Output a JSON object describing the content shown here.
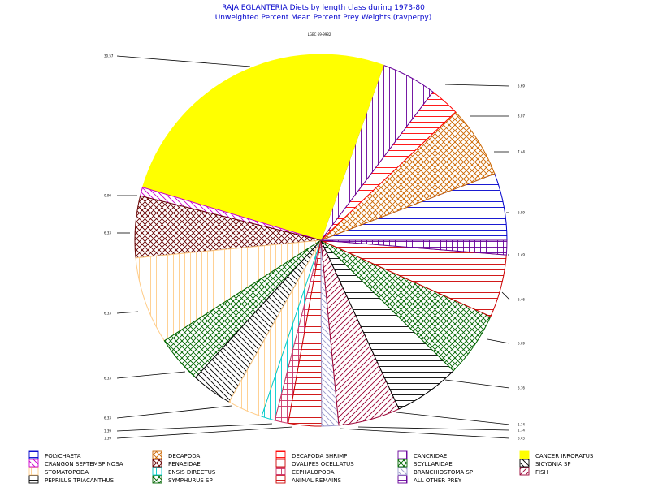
{
  "chart_data": {
    "type": "pie",
    "title": "RAJA EGLANTERIA Diets by length class during 1973-80",
    "subtitle": "Unweighted Percent Mean Percent Prey  Weights (ravperpy)",
    "header_label": "LGBC 69-9982",
    "slices": [
      {
        "name": "POLYCHAETA",
        "value": 6.89,
        "color": "#0000cc",
        "pattern": "hlines",
        "label": "6.89"
      },
      {
        "name": "CRANGON SEPTEMSPINOSA",
        "value": 0,
        "color": "#cc00cc",
        "pattern": "bdiag",
        "label": ""
      },
      {
        "name": "STOMATOPODA",
        "value": 0,
        "color": "#ffcc88",
        "pattern": "vlines",
        "label": ""
      },
      {
        "name": "PEPRILUS TRIACANTHUS",
        "value": 0,
        "color": "#000000",
        "pattern": "hlines",
        "label": ""
      },
      {
        "name": "DECAPODA",
        "value": 7.44,
        "color": "#cc6600",
        "pattern": "cross",
        "label": "7.44"
      },
      {
        "name": "PENAEIDAE",
        "value": 6.33,
        "color": "#660000",
        "pattern": "cross",
        "label": "6.33"
      },
      {
        "name": "ENSIS DIRECTUS",
        "value": 1.39,
        "color": "#00cccc",
        "pattern": "vlines",
        "label": "1.39"
      },
      {
        "name": "SYMPHURUS SP",
        "value": 0,
        "color": "#006600",
        "pattern": "cross",
        "label": ""
      },
      {
        "name": "DECAPODA SHRIMP",
        "value": 3.07,
        "color": "#ff0000",
        "pattern": "hlines",
        "label": "3.07"
      },
      {
        "name": "OVALIPES OCELLATUS",
        "value": 6.46,
        "color": "#cc0000",
        "pattern": "hlines",
        "label": "6.46"
      },
      {
        "name": "CEPHALOPODA",
        "value": 6.76,
        "color": "#cc3366",
        "pattern": "grid",
        "label": "6.76"
      },
      {
        "name": "ANIMAL REMAINS",
        "value": 0,
        "color": "#cc0000",
        "pattern": "hlines",
        "label": ""
      },
      {
        "name": "CANCRIDAE",
        "value": 5.69,
        "color": "#660099",
        "pattern": "vlines",
        "label": "5.69"
      },
      {
        "name": "SCYLLARIDAE",
        "value": 6.69,
        "color": "#006600",
        "pattern": "cross",
        "label": "6.69"
      },
      {
        "name": "BRANCHIOSTOMA SP",
        "value": 1.74,
        "color": "#9999cc",
        "pattern": "bdiag",
        "label": "1.74"
      },
      {
        "name": "ALL OTHER PREY",
        "value": 1.49,
        "color": "#660099",
        "pattern": "grid",
        "label": "1.49"
      },
      {
        "name": "CANCER IRRORATUS",
        "value": 30.57,
        "color": "#ffff00",
        "pattern": "solid",
        "label": "30.57"
      },
      {
        "name": "SICYONIA SP",
        "value": 8.95,
        "color": "#000000",
        "pattern": "bdiag",
        "label": "8.95"
      },
      {
        "name": "FISH",
        "value": 6.33,
        "color": "#990033",
        "pattern": "fdiag",
        "label": "6.33"
      }
    ]
  },
  "legend": {
    "items": [
      {
        "name": "POLYCHAETA",
        "color": "#0000cc",
        "pattern": "hlines"
      },
      {
        "name": "DECAPODA",
        "color": "#cc6600",
        "pattern": "cross"
      },
      {
        "name": "DECAPODA SHRIMP",
        "color": "#ff0000",
        "pattern": "hlines"
      },
      {
        "name": "CANCRIDAE",
        "color": "#660099",
        "pattern": "vlines"
      },
      {
        "name": "CANCER IRRORATUS",
        "color": "#ffff00",
        "pattern": "solid"
      },
      {
        "name": "CRANGON SEPTEMSPINOSA",
        "color": "#cc00cc",
        "pattern": "bdiag"
      },
      {
        "name": "PENAEIDAE",
        "color": "#660000",
        "pattern": "cross"
      },
      {
        "name": "OVALIPES OCELLATUS",
        "color": "#cc0000",
        "pattern": "hlines"
      },
      {
        "name": "SCYLLARIDAE",
        "color": "#006600",
        "pattern": "cross"
      },
      {
        "name": "SICYONIA SP",
        "color": "#000000",
        "pattern": "bdiag"
      },
      {
        "name": "STOMATOPODA",
        "color": "#ffcc88",
        "pattern": "vlines"
      },
      {
        "name": "ENSIS DIRECTUS",
        "color": "#00cccc",
        "pattern": "vlines"
      },
      {
        "name": "CEPHALOPODA",
        "color": "#cc3366",
        "pattern": "grid"
      },
      {
        "name": "BRANCHIOSTOMA SP",
        "color": "#9999cc",
        "pattern": "bdiag"
      },
      {
        "name": "FISH",
        "color": "#990033",
        "pattern": "fdiag"
      },
      {
        "name": "PEPRILUS TRIACANTHUS",
        "color": "#000000",
        "pattern": "hlines"
      },
      {
        "name": "SYMPHURUS SP",
        "color": "#006600",
        "pattern": "cross"
      },
      {
        "name": "ANIMAL REMAINS",
        "color": "#cc0000",
        "pattern": "hlines"
      },
      {
        "name": "ALL OTHER PREY",
        "color": "#660099",
        "pattern": "grid"
      }
    ]
  }
}
